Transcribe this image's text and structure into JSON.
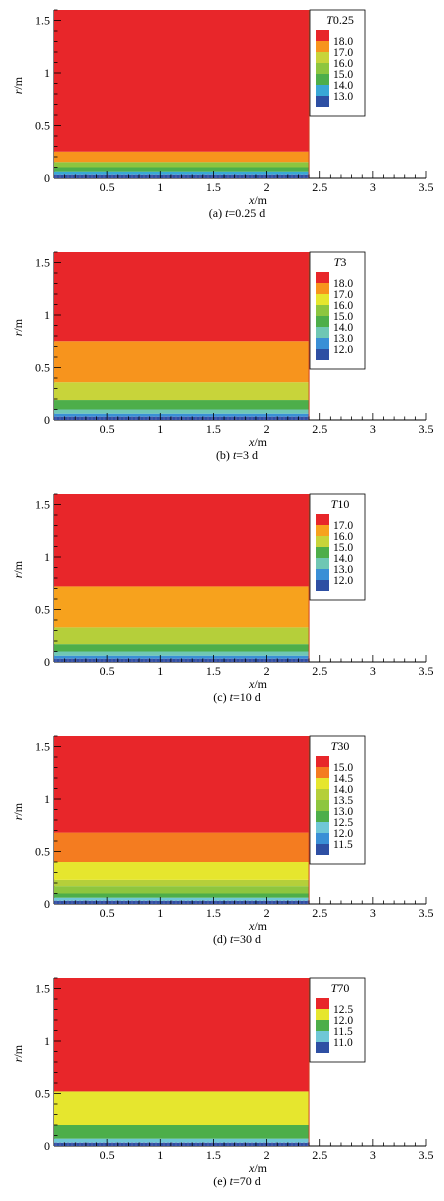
{
  "chart_data": [
    {
      "type": "heatmap",
      "caption": "(a) t=0.25 d",
      "caption_parts": [
        "(a) ",
        "t",
        "=0.25 d"
      ],
      "legend_title": [
        "T",
        "0.25"
      ],
      "xlabel": [
        "x",
        "/m"
      ],
      "ylabel": [
        "r",
        "/m"
      ],
      "xlim": [
        0,
        3.5
      ],
      "ylim": [
        0,
        1.6
      ],
      "x_ticks": [
        0.5,
        1,
        1.5,
        2,
        2.5,
        3,
        3.5
      ],
      "x_tick_labels": [
        "0.5",
        "1",
        "1.5",
        "2",
        "2.5",
        "3",
        "3.5"
      ],
      "y_ticks": [
        0,
        0.5,
        1,
        1.5
      ],
      "y_tick_labels": [
        "0",
        "0.5",
        "1",
        "1.5"
      ],
      "domain_x": [
        0,
        2.4
      ],
      "legend_levels": [
        "18.0",
        "17.0",
        "16.0",
        "15.0",
        "14.0",
        "13.0"
      ],
      "legend_colors": [
        "#e8262a",
        "#f7941d",
        "#c8d43a",
        "#8dc63f",
        "#4dae4a",
        "#39a7d6",
        "#2e4fa3"
      ],
      "bands": [
        {
          "r_min": 0.0,
          "r_max": 0.03,
          "color": "#2e4fa3"
        },
        {
          "r_min": 0.03,
          "r_max": 0.06,
          "color": "#39a7d6"
        },
        {
          "r_min": 0.06,
          "r_max": 0.1,
          "color": "#4dae4a"
        },
        {
          "r_min": 0.1,
          "r_max": 0.15,
          "color": "#8dc63f"
        },
        {
          "r_min": 0.15,
          "r_max": 0.25,
          "color": "#f7941d"
        },
        {
          "r_min": 0.25,
          "r_max": 1.6,
          "color": "#e8262a"
        }
      ]
    },
    {
      "type": "heatmap",
      "caption": "(b) t=3 d",
      "caption_parts": [
        "(b) ",
        "t",
        "=3 d"
      ],
      "legend_title": [
        "T",
        "3"
      ],
      "xlabel": [
        "x",
        "/m"
      ],
      "ylabel": [
        "r",
        "/m"
      ],
      "xlim": [
        0,
        3.5
      ],
      "ylim": [
        0,
        1.6
      ],
      "x_ticks": [
        0.5,
        1,
        1.5,
        2,
        2.5,
        3,
        3.5
      ],
      "x_tick_labels": [
        "0.5",
        "1",
        "1.5",
        "2",
        "2.5",
        "3",
        "3.5"
      ],
      "y_ticks": [
        0,
        0.5,
        1,
        1.5
      ],
      "y_tick_labels": [
        "0",
        "0.5",
        "1",
        "1.5"
      ],
      "domain_x": [
        0,
        2.4
      ],
      "legend_levels": [
        "18.0",
        "17.0",
        "16.0",
        "15.0",
        "14.0",
        "13.0",
        "12.0"
      ],
      "legend_colors": [
        "#e8262a",
        "#f7941d",
        "#e6e62e",
        "#8dc63f",
        "#4dae4a",
        "#6fc7b4",
        "#3a8fd6",
        "#2e4fa3"
      ],
      "bands": [
        {
          "r_min": 0.0,
          "r_max": 0.03,
          "color": "#2e4fa3"
        },
        {
          "r_min": 0.03,
          "r_max": 0.06,
          "color": "#3a8fd6"
        },
        {
          "r_min": 0.06,
          "r_max": 0.1,
          "color": "#6fc7b4"
        },
        {
          "r_min": 0.1,
          "r_max": 0.19,
          "color": "#4dae4a"
        },
        {
          "r_min": 0.19,
          "r_max": 0.36,
          "color": "#c8d43a"
        },
        {
          "r_min": 0.36,
          "r_max": 0.75,
          "color": "#f7941d"
        },
        {
          "r_min": 0.75,
          "r_max": 1.6,
          "color": "#e8262a"
        }
      ]
    },
    {
      "type": "heatmap",
      "caption": "(c) t=10 d",
      "caption_parts": [
        "(c) ",
        "t",
        "=10 d"
      ],
      "legend_title": [
        "T",
        "10"
      ],
      "xlabel": [
        "x",
        "/m"
      ],
      "ylabel": [
        "r",
        "/m"
      ],
      "xlim": [
        0,
        3.5
      ],
      "ylim": [
        0,
        1.6
      ],
      "x_ticks": [
        0.5,
        1,
        1.5,
        2,
        2.5,
        3,
        3.5
      ],
      "x_tick_labels": [
        "0.5",
        "1",
        "1.5",
        "2",
        "2.5",
        "3",
        "3.5"
      ],
      "y_ticks": [
        0,
        0.5,
        1,
        1.5
      ],
      "y_tick_labels": [
        "0",
        "0.5",
        "1",
        "1.5"
      ],
      "domain_x": [
        0,
        2.4
      ],
      "legend_levels": [
        "17.0",
        "16.0",
        "15.0",
        "14.0",
        "13.0",
        "12.0"
      ],
      "legend_colors": [
        "#e8262a",
        "#f7a21d",
        "#c8d43a",
        "#4dae4a",
        "#6fc7b4",
        "#3a8fd6",
        "#2e4fa3"
      ],
      "bands": [
        {
          "r_min": 0.0,
          "r_max": 0.03,
          "color": "#2e4fa3"
        },
        {
          "r_min": 0.03,
          "r_max": 0.06,
          "color": "#3a8fd6"
        },
        {
          "r_min": 0.06,
          "r_max": 0.1,
          "color": "#6fc7b4"
        },
        {
          "r_min": 0.1,
          "r_max": 0.17,
          "color": "#4dae4a"
        },
        {
          "r_min": 0.17,
          "r_max": 0.33,
          "color": "#b5cf3a"
        },
        {
          "r_min": 0.33,
          "r_max": 0.72,
          "color": "#f7a21d"
        },
        {
          "r_min": 0.72,
          "r_max": 1.6,
          "color": "#e8262a"
        }
      ]
    },
    {
      "type": "heatmap",
      "caption": "(d) t=30 d",
      "caption_parts": [
        "(d) ",
        "t",
        "=30 d"
      ],
      "legend_title": [
        "T",
        "30"
      ],
      "xlabel": [
        "x",
        "/m"
      ],
      "ylabel": [
        "r",
        "/m"
      ],
      "xlim": [
        0,
        3.5
      ],
      "ylim": [
        0,
        1.6
      ],
      "x_ticks": [
        0.5,
        1,
        1.5,
        2,
        2.5,
        3,
        3.5
      ],
      "x_tick_labels": [
        "0.5",
        "1",
        "1.5",
        "2",
        "2.5",
        "3",
        "3.5"
      ],
      "y_ticks": [
        0,
        0.5,
        1,
        1.5
      ],
      "y_tick_labels": [
        "0",
        "0.5",
        "1",
        "1.5"
      ],
      "domain_x": [
        0,
        2.4
      ],
      "legend_levels": [
        "15.0",
        "14.5",
        "14.0",
        "13.5",
        "13.0",
        "12.5",
        "12.0",
        "11.5"
      ],
      "legend_colors": [
        "#e8262a",
        "#f47c20",
        "#e6e62e",
        "#b5cf3a",
        "#8dc63f",
        "#4dae4a",
        "#6fc7d6",
        "#3a8fd6",
        "#2e4fa3"
      ],
      "bands": [
        {
          "r_min": 0.0,
          "r_max": 0.03,
          "color": "#2e4fa3"
        },
        {
          "r_min": 0.03,
          "r_max": 0.06,
          "color": "#6fc7d6"
        },
        {
          "r_min": 0.06,
          "r_max": 0.1,
          "color": "#4dae4a"
        },
        {
          "r_min": 0.1,
          "r_max": 0.17,
          "color": "#8dc63f"
        },
        {
          "r_min": 0.17,
          "r_max": 0.23,
          "color": "#b5cf3a"
        },
        {
          "r_min": 0.23,
          "r_max": 0.4,
          "color": "#e6e62e"
        },
        {
          "r_min": 0.4,
          "r_max": 0.68,
          "color": "#f47c20"
        },
        {
          "r_min": 0.68,
          "r_max": 1.6,
          "color": "#e8262a"
        }
      ]
    },
    {
      "type": "heatmap",
      "caption": "(e) t=70 d",
      "caption_parts": [
        "(e) ",
        "t",
        "=70 d"
      ],
      "legend_title": [
        "T",
        "70"
      ],
      "xlabel": [
        "x",
        "/m"
      ],
      "ylabel": [
        "r",
        "/m"
      ],
      "xlim": [
        0,
        3.5
      ],
      "ylim": [
        0,
        1.6
      ],
      "x_ticks": [
        0.5,
        1,
        1.5,
        2,
        2.5,
        3,
        3.5
      ],
      "x_tick_labels": [
        "0.5",
        "1",
        "1.5",
        "2",
        "2.5",
        "3",
        "3.5"
      ],
      "y_ticks": [
        0,
        0.5,
        1,
        1.5
      ],
      "y_tick_labels": [
        "0",
        "0.5",
        "1",
        "1.5"
      ],
      "domain_x": [
        0,
        2.4
      ],
      "legend_levels": [
        "12.5",
        "12.0",
        "11.5",
        "11.0"
      ],
      "legend_colors": [
        "#e8262a",
        "#e6e62e",
        "#4dae4a",
        "#6fc7d6",
        "#2e4fa3"
      ],
      "bands": [
        {
          "r_min": 0.0,
          "r_max": 0.03,
          "color": "#2e4fa3"
        },
        {
          "r_min": 0.03,
          "r_max": 0.07,
          "color": "#6fc7d6"
        },
        {
          "r_min": 0.07,
          "r_max": 0.2,
          "color": "#4dae4a"
        },
        {
          "r_min": 0.2,
          "r_max": 0.52,
          "color": "#e6e62e"
        },
        {
          "r_min": 0.52,
          "r_max": 1.6,
          "color": "#e8262a"
        }
      ]
    }
  ]
}
